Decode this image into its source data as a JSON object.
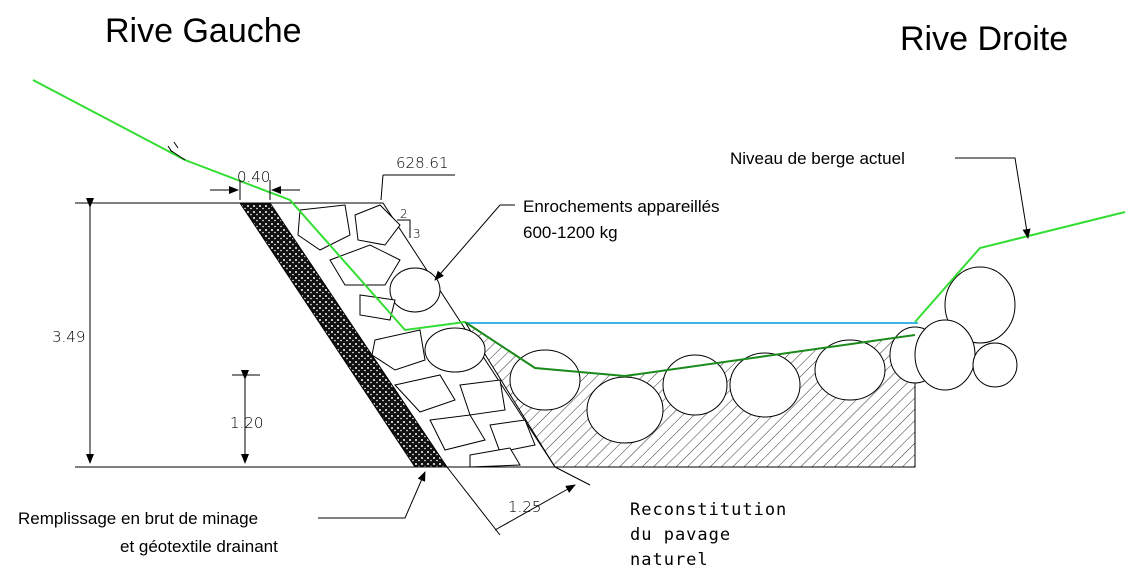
{
  "titles": {
    "left": "Rive Gauche",
    "right": "Rive Droite"
  },
  "annotations": {
    "bank_level": "Niveau de berge actuel",
    "elevation": "628.61",
    "filter_width": "0.40",
    "riprap": [
      "Enrochements appareillés",
      "600-1200 kg"
    ],
    "slope": [
      "2",
      "3"
    ],
    "total_height": "3.49",
    "toe_height": "1.20",
    "riprap_thickness": "1.25",
    "fill": [
      "Remplissage en brut de minage",
      "et géotextile drainant"
    ],
    "pavement": [
      "Reconstitution",
      "du pavage",
      "naturel"
    ]
  }
}
